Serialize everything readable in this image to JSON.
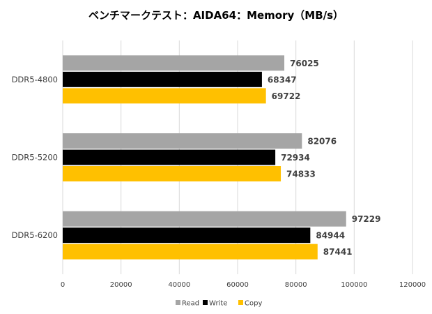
{
  "chart_data": {
    "type": "bar",
    "orientation": "horizontal",
    "title": "ベンチマークテスト：AIDA64：Memory（MB/s）",
    "categories": [
      "DDR5-4800",
      "DDR5-5200",
      "DDR5-6200"
    ],
    "series": [
      {
        "name": "Read",
        "color": "#a5a5a5",
        "values": [
          76025,
          82076,
          97229
        ]
      },
      {
        "name": "Write",
        "color": "#000000",
        "values": [
          68347,
          72934,
          84944
        ]
      },
      {
        "name": "Copy",
        "color": "#ffc000",
        "values": [
          69722,
          74833,
          87441
        ]
      }
    ],
    "xlim": [
      0,
      120000
    ],
    "xticks": [
      "0",
      "20000",
      "40000",
      "60000",
      "80000",
      "100000",
      "120000"
    ],
    "grid": true,
    "legend": "bottom",
    "xlabel": "",
    "ylabel": ""
  }
}
